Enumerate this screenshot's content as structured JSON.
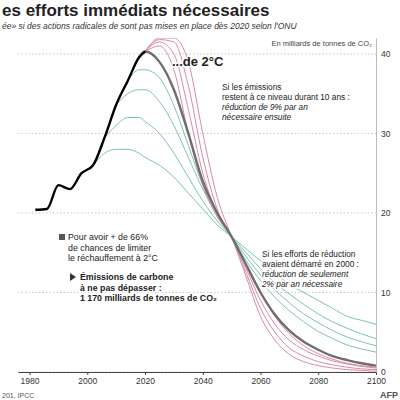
{
  "chart_data": {
    "type": "line",
    "title": "es efforts immédiats nécessaires",
    "subtitle": "ée» si des actions radicales de sont pas mises en place dès 2020 selon l'ONU",
    "y_label": "En milliards de tonnes de CO₂",
    "annotations": [
      [
        "...de 2°C"
      ],
      [
        "Si les émissions",
        "restent à ce niveau durant 10 ans :",
        "réduction de 9% par an",
        "nécessaire ensuite"
      ],
      [
        "Pour avoir + de 66%",
        "de chances de limiter",
        "le réchauffement à 2°C"
      ],
      [
        "Émissions de carbone",
        "à ne pas dépasser :",
        "1 170 milliards de tonnes de CO₂"
      ],
      [
        "Si les efforts de réduction",
        "avaient démarré en 2000 :",
        "réduction de seulement",
        "2% par an nécessaire"
      ]
    ],
    "source": "201, IPCC",
    "credit": "AFP",
    "x": [
      1982,
      1986,
      1990,
      1994,
      1998,
      2002,
      2006,
      2010,
      2014,
      2018,
      2020,
      2025,
      2030,
      2035,
      2040,
      2045,
      2050,
      2055,
      2060,
      2065,
      2070,
      2075,
      2080,
      2085,
      2090,
      2095,
      2100
    ],
    "xlim": [
      1976,
      2100
    ],
    "xticks": [
      1980,
      2000,
      2020,
      2040,
      2060,
      2080,
      2100
    ],
    "ylim": [
      0,
      42
    ],
    "yticks": [
      0,
      10,
      20,
      30,
      40
    ],
    "grid": true,
    "series": [
      {
        "color": "#7cc4b0",
        "values": [
          null,
          null,
          null,
          null,
          null,
          26,
          27.5,
          28,
          28,
          27.5,
          27,
          26,
          24.5,
          22.5,
          20.5,
          18.5,
          17,
          15.5,
          14,
          12.5,
          11,
          10,
          9,
          8,
          7,
          6.5,
          6
        ]
      },
      {
        "color": "#7cc4b0",
        "values": [
          null,
          null,
          null,
          null,
          null,
          null,
          29.5,
          31,
          32,
          32,
          31.5,
          30,
          27.5,
          24.5,
          21.5,
          19,
          17,
          15,
          13,
          11.2,
          9.8,
          8.5,
          7.3,
          6.3,
          5.5,
          4.8,
          4.2
        ]
      },
      {
        "color": "#7cc4b0",
        "values": [
          null,
          null,
          null,
          null,
          null,
          null,
          null,
          33.6,
          35,
          35.5,
          35.5,
          34,
          31,
          27,
          23,
          19.7,
          17,
          14.5,
          12.2,
          10.3,
          8.7,
          7.3,
          6.2,
          5.2,
          4.4,
          3.8,
          3.3
        ]
      },
      {
        "color": "#7cc4b0",
        "values": [
          null,
          null,
          null,
          null,
          null,
          null,
          null,
          null,
          36.6,
          38,
          38,
          37,
          33.5,
          28.5,
          23.5,
          20,
          17,
          14,
          11.5,
          9.4,
          7.7,
          6.3,
          5.1,
          4.2,
          3.4,
          2.9,
          2.5
        ]
      },
      {
        "color": "#d98aa6",
        "values": [
          null,
          null,
          null,
          null,
          null,
          null,
          null,
          null,
          null,
          null,
          40.3,
          41,
          38,
          30,
          23.5,
          19.5,
          17,
          13.5,
          10,
          7,
          4.8,
          3.3,
          2.3,
          1.6,
          1.1,
          0.8,
          0.6
        ]
      },
      {
        "color": "#d98aa6",
        "values": [
          null,
          null,
          null,
          null,
          null,
          null,
          null,
          null,
          null,
          null,
          40.3,
          41.5,
          40,
          33,
          25,
          20,
          17,
          13,
          9,
          6,
          4,
          2.8,
          2,
          1.4,
          1,
          0.7,
          0.5
        ]
      },
      {
        "color": "#d98aa6",
        "values": [
          null,
          null,
          null,
          null,
          null,
          null,
          null,
          null,
          null,
          null,
          40.3,
          41.8,
          41.5,
          36,
          27,
          20.5,
          17,
          12.5,
          8,
          5,
          3,
          2,
          1.3,
          0.9,
          0.6,
          0.4,
          0.3
        ]
      },
      {
        "color": "#d98aa6",
        "values": [
          null,
          null,
          null,
          null,
          null,
          null,
          null,
          null,
          null,
          null,
          40.3,
          42,
          42,
          39,
          30,
          22,
          17,
          12,
          7,
          4,
          2.2,
          1.3,
          0.8,
          0.5,
          0.3,
          0.2,
          0.1
        ]
      },
      {
        "color": "#6e6e6e",
        "values": [
          null,
          null,
          null,
          null,
          null,
          null,
          null,
          null,
          null,
          39.6,
          40.3,
          39,
          35.5,
          30,
          24,
          20,
          17,
          13.5,
          10,
          7.2,
          5.2,
          3.8,
          2.8,
          2,
          1.5,
          1.1,
          0.8
        ]
      },
      {
        "color": "#000000",
        "values": [
          20.4,
          20.5,
          23.5,
          23,
          25,
          26,
          29.5,
          33.6,
          36.6,
          39.6,
          40.3,
          null,
          null,
          null,
          null,
          null,
          null,
          null,
          null,
          null,
          null,
          null,
          null,
          null,
          null,
          null,
          null
        ]
      }
    ]
  }
}
